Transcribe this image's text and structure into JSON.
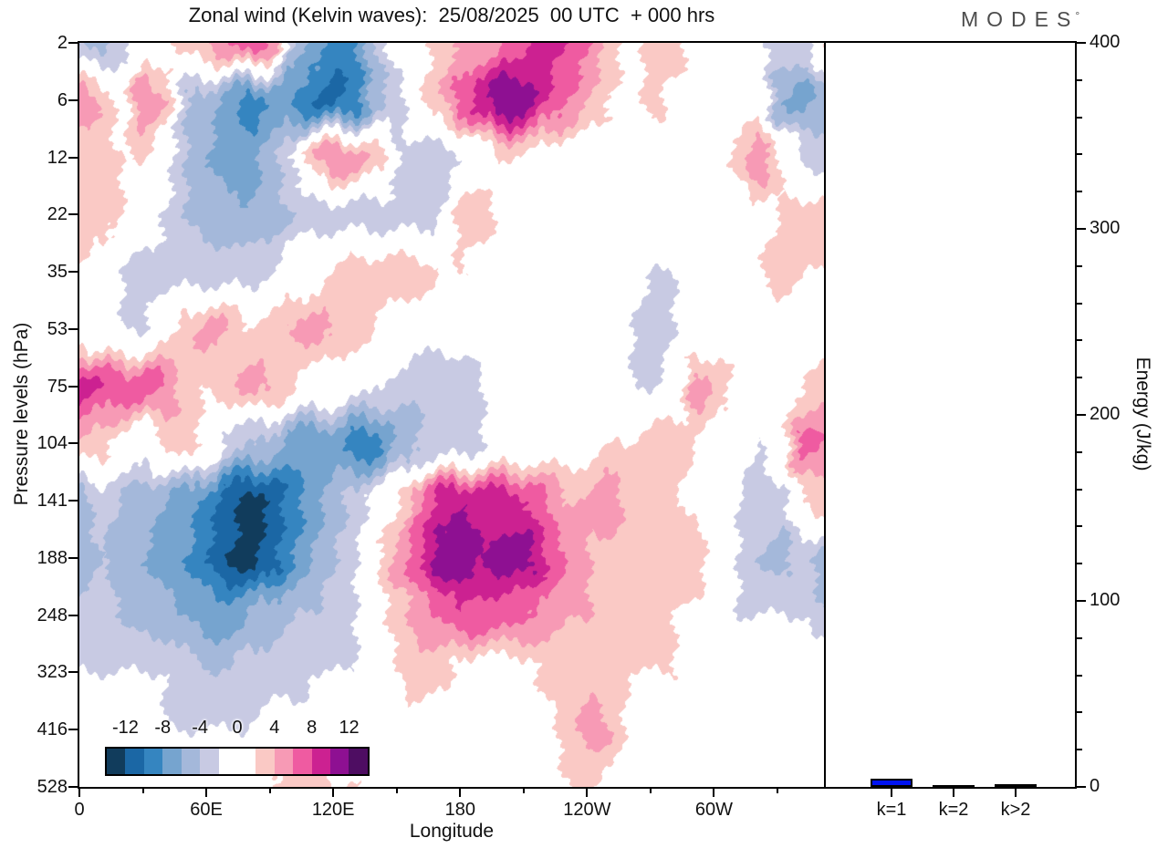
{
  "title": "Zonal wind (Kelvin waves):  25/08/2025  00 UTC  + 000 hrs",
  "logo": {
    "text": "MODES",
    "sup": "°"
  },
  "axes": {
    "pressure_label": "Pressure levels (hPa)",
    "pressure_ticks": [
      "2",
      "6",
      "12",
      "22",
      "35",
      "53",
      "75",
      "104",
      "141",
      "188",
      "248",
      "323",
      "416",
      "528"
    ],
    "lon_label": "Longitude",
    "lon_major_ticks": [
      {
        "deg": 0,
        "label": "0"
      },
      {
        "deg": 60,
        "label": "60E"
      },
      {
        "deg": 120,
        "label": "120E"
      },
      {
        "deg": 180,
        "label": "180"
      },
      {
        "deg": 240,
        "label": "120W"
      },
      {
        "deg": 300,
        "label": "60W"
      }
    ],
    "lon_minor_tick_degs": [
      30,
      90,
      150,
      210,
      270,
      330
    ],
    "lon_max_deg": 352,
    "energy_label": "Energy (J/kg)",
    "energy_major_ticks": [
      {
        "value": 400,
        "label": "400"
      },
      {
        "value": 300,
        "label": "300"
      },
      {
        "value": 200,
        "label": "200"
      },
      {
        "value": 100,
        "label": "100"
      },
      {
        "value": 0,
        "label": "0"
      }
    ],
    "energy_minor_step": 20,
    "energy_max": 400
  },
  "colorbar": {
    "labels": [
      "-12",
      "-8",
      "-4",
      "0",
      "4",
      "8",
      "12"
    ],
    "label_values": [
      -12,
      -8,
      -4,
      0,
      4,
      8,
      12
    ],
    "cell_colors": [
      "#113c5c",
      "#1b67a5",
      "#3585c0",
      "#76a4cf",
      "#a4b8da",
      "#c8cae3",
      "#ffffff",
      "#ffffff",
      "#fac9c5",
      "#f79ab5",
      "#ef5ba1",
      "#cc2191",
      "#8e1092",
      "#4e0d62"
    ],
    "edges_min": -14,
    "edges_max": 14,
    "edge_step": 2
  },
  "energy_panel": {
    "bars": [
      {
        "label": "k=1",
        "value_jkg": 4.4,
        "color": "#0013f2"
      },
      {
        "label": "k=2",
        "value_jkg": 1.2,
        "color": "#15151e"
      },
      {
        "label": "k>2",
        "value_jkg": 1.7,
        "color": "#15151e"
      }
    ]
  },
  "chart_data": [
    {
      "type": "heatmap",
      "title": "Zonal wind (Kelvin waves): 25/08/2025 00 UTC + 000 hrs",
      "xlabel": "Longitude",
      "ylabel": "Pressure levels (hPa)",
      "x_lon_deg": [
        0,
        10,
        20,
        30,
        40,
        50,
        60,
        70,
        80,
        90,
        100,
        110,
        120,
        130,
        140,
        150,
        160,
        170,
        180,
        190,
        200,
        210,
        220,
        230,
        240,
        250,
        260,
        270,
        280,
        290,
        300,
        310,
        320,
        330,
        340,
        350
      ],
      "y_pressure_hpa": [
        2,
        6,
        12,
        22,
        35,
        53,
        75,
        104,
        141,
        188,
        248,
        323,
        416,
        528
      ],
      "level_edges": [
        -14,
        -12,
        -10,
        -8,
        -6,
        -4,
        -2,
        0,
        2,
        4,
        6,
        8,
        10,
        12,
        14
      ],
      "legend_labels": [
        "-12",
        "-8",
        "-4",
        "0",
        "4",
        "8",
        "12"
      ],
      "values": [
        [
          -4,
          -5,
          -3,
          0,
          1,
          3,
          4,
          6,
          8,
          5,
          -4,
          -7,
          -9,
          -8,
          -4,
          0,
          1,
          3,
          4,
          5,
          6,
          8,
          9,
          8,
          6,
          3,
          1,
          3,
          3,
          1,
          0,
          0,
          -2,
          -3,
          -3,
          3
        ],
        [
          5,
          4,
          1,
          6,
          4,
          -4,
          -5,
          -7,
          -9,
          -8,
          -8,
          -10,
          -11,
          -9,
          -5,
          -3,
          2,
          4,
          7,
          10,
          12,
          11,
          8,
          6,
          4,
          2,
          1,
          3,
          1,
          0,
          0,
          -1,
          0,
          -6,
          -7,
          -5
        ],
        [
          3,
          2,
          2,
          2,
          -1,
          -4,
          -6,
          -7,
          -7,
          -5,
          -2,
          4,
          6,
          5,
          3,
          -2,
          -3,
          -3,
          -2,
          1,
          2,
          2,
          1,
          0,
          0,
          1,
          0,
          0,
          0,
          0,
          0,
          3,
          6,
          2,
          -2,
          -3
        ],
        [
          3,
          3,
          2,
          1,
          -2,
          -4,
          -5,
          -5,
          -6,
          -5,
          -4,
          -3,
          -3,
          -3,
          -3,
          -3,
          -3,
          -2,
          3,
          3,
          1,
          -1,
          0,
          0,
          0,
          0,
          0,
          0,
          -1,
          -1,
          -1,
          0,
          1,
          2,
          3,
          3
        ],
        [
          2,
          1,
          -2,
          -3,
          -3,
          -3,
          -3,
          -3,
          -3,
          -2,
          0,
          1,
          2,
          3,
          3,
          3,
          3,
          2,
          2,
          0,
          0,
          0,
          0,
          0,
          0,
          -1,
          -1,
          -2,
          -2,
          -2,
          0,
          1,
          2,
          3,
          2,
          2
        ],
        [
          1,
          -1,
          -2,
          -2,
          1,
          3,
          5,
          4,
          2,
          3,
          4,
          5,
          4,
          3,
          2,
          1,
          0,
          -1,
          -1,
          -1,
          -1,
          -2,
          0,
          0,
          0,
          -1,
          -2,
          -3,
          -2,
          -1,
          0,
          0,
          0,
          0,
          1,
          1
        ],
        [
          9,
          8,
          7,
          8,
          6,
          3,
          2,
          3,
          5,
          4,
          2,
          1,
          0,
          -1,
          -2,
          -3,
          -4,
          -4,
          -3,
          -2,
          -1,
          -1,
          0,
          0,
          -1,
          -1,
          -2,
          -2,
          -1,
          5,
          4,
          1,
          0,
          1,
          2,
          3
        ],
        [
          4,
          3,
          1,
          -1,
          2,
          4,
          1,
          -3,
          -4,
          -5,
          -7,
          -8,
          -7,
          -9,
          -9,
          -6,
          -4,
          -4,
          -3,
          -2,
          -1,
          0,
          0,
          1,
          1,
          2,
          2,
          4,
          3,
          2,
          0,
          -1,
          -2,
          1,
          7,
          6
        ],
        [
          -5,
          -3,
          -4,
          -5,
          -6,
          -7,
          -9,
          -11,
          -13,
          -12,
          -9,
          -7,
          -5,
          -3,
          -1,
          2,
          6,
          9,
          10,
          9,
          9,
          8,
          6,
          4,
          4,
          6,
          2,
          2,
          2,
          1,
          0,
          -2,
          -3,
          -3,
          2,
          3
        ],
        [
          -6,
          -4,
          -5,
          -6,
          -7,
          -8,
          -10,
          -12,
          -13,
          -11,
          -8,
          -6,
          -4,
          -2,
          2,
          5,
          8,
          11,
          12,
          10,
          11,
          11,
          8,
          6,
          4,
          3,
          2,
          2,
          4,
          4,
          -1,
          -2,
          -4,
          -5,
          -3,
          -5
        ],
        [
          -3,
          -3,
          -4,
          -5,
          -5,
          -6,
          -7,
          -7,
          -6,
          -5,
          -4,
          -4,
          -3,
          -2,
          1,
          3,
          5,
          6,
          8,
          7,
          7,
          6,
          5,
          4,
          4,
          3,
          2,
          2,
          2,
          1,
          0,
          -2,
          -2,
          -2,
          -2,
          -4
        ],
        [
          -2,
          -2,
          -2,
          -2,
          -2,
          -3,
          -4,
          -4,
          -3,
          -3,
          -3,
          -2,
          -2,
          -2,
          -1,
          2,
          3,
          3,
          1,
          0,
          1,
          1,
          3,
          3,
          3,
          3,
          2,
          2,
          2,
          0,
          0,
          0,
          -1,
          -1,
          0,
          0
        ],
        [
          -2,
          -1,
          -2,
          -2,
          -2,
          -2,
          -2,
          -2,
          -2,
          -1,
          -1,
          -1,
          -2,
          -1,
          0,
          1,
          1,
          0,
          0,
          0,
          0,
          0,
          1,
          3,
          5,
          4,
          1,
          0,
          0,
          0,
          -2,
          -1,
          0,
          0,
          0,
          0
        ],
        [
          -1,
          -1,
          -1,
          -1,
          0,
          0,
          0,
          0,
          1,
          2,
          3,
          3,
          2,
          2,
          1,
          0,
          0,
          0,
          0,
          0,
          0,
          0,
          1,
          2,
          2,
          1,
          0,
          -1,
          0,
          0,
          -1,
          0,
          0,
          0,
          0,
          0
        ]
      ]
    },
    {
      "type": "bar",
      "categories": [
        "k=1",
        "k=2",
        "k>2"
      ],
      "values": [
        4.4,
        1.2,
        1.7
      ],
      "ylabel": "Energy (J/kg)",
      "ylim": [
        0,
        400
      ],
      "bar_colors": [
        "#0013f2",
        "#15151e",
        "#15151e"
      ]
    }
  ]
}
